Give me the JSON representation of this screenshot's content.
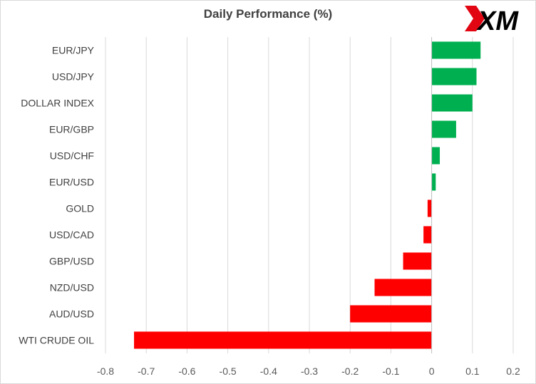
{
  "title": "Daily Performance (%)",
  "logo": {
    "text": "XM",
    "accent_color": "#e20613",
    "text_color": "#000000"
  },
  "colors": {
    "positive": "#00b050",
    "negative": "#ff0000",
    "grid": "#d9d9d9",
    "axis": "#bfbfbf"
  },
  "chart_data": {
    "type": "bar",
    "orientation": "horizontal",
    "title": "Daily Performance (%)",
    "xlabel": "",
    "ylabel": "",
    "xlim": [
      -0.8,
      0.2
    ],
    "x_ticks": [
      "-0.8",
      "-0.7",
      "-0.6",
      "-0.5",
      "-0.4",
      "-0.3",
      "-0.2",
      "-0.1",
      "0",
      "0.1",
      "0.2"
    ],
    "x_tick_values": [
      -0.8,
      -0.7,
      -0.6,
      -0.5,
      -0.4,
      -0.3,
      -0.2,
      -0.1,
      0,
      0.1,
      0.2
    ],
    "grid": "vertical",
    "categories": [
      "EUR/JPY",
      "USD/JPY",
      "DOLLAR INDEX",
      "EUR/GBP",
      "USD/CHF",
      "EUR/USD",
      "GOLD",
      "USD/CAD",
      "GBP/USD",
      "NZD/USD",
      "AUD/USD",
      "WTI CRUDE OIL"
    ],
    "values": [
      0.12,
      0.11,
      0.1,
      0.06,
      0.02,
      0.01,
      -0.01,
      -0.02,
      -0.07,
      -0.14,
      -0.2,
      -0.73
    ]
  }
}
